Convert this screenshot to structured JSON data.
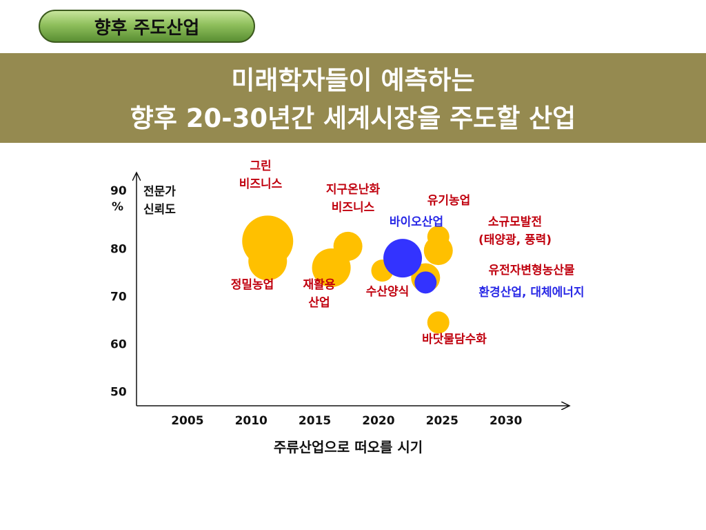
{
  "header": {
    "tag": "향후 주도산업",
    "title_line1": "미래학자들이 예측하는",
    "title_line2": "향후 20-30년간 세계시장을 주도할 산업"
  },
  "colors": {
    "bubble_orange": "#ffc000",
    "bubble_blue": "#3333ff",
    "label_red": "#c0000e",
    "label_blue": "#2929e6"
  },
  "chart_data": {
    "type": "scatter",
    "xlabel": "주류산업으로 떠오를 시기",
    "ylabel": [
      "전문가",
      "신뢰도"
    ],
    "y_unit_label": [
      "90",
      "%"
    ],
    "x_ticks": [
      "2005",
      "2010",
      "2015",
      "2020",
      "2025",
      "2030"
    ],
    "y_ticks": [
      "80",
      "70",
      "60",
      "50"
    ],
    "xlim": [
      2001,
      2035
    ],
    "ylim": [
      47,
      96
    ],
    "points": [
      {
        "label": [
          "그린",
          "비즈니스"
        ],
        "x": 2011.3,
        "y": 81.6,
        "size": "large",
        "color": "orange"
      },
      {
        "label": [
          "정밀농업"
        ],
        "x": 2011.3,
        "y": 77.4,
        "size": "medium",
        "color": "orange"
      },
      {
        "label": [
          "지구온난화",
          "비즈니스"
        ],
        "x": 2017.6,
        "y": 80.5,
        "size": "small",
        "color": "orange"
      },
      {
        "label": [
          "재활용",
          "산업"
        ],
        "x": 2016.3,
        "y": 76.0,
        "size": "medium",
        "color": "orange"
      },
      {
        "label": [
          "수산양식"
        ],
        "x": 2020.3,
        "y": 75.4,
        "size": "xsmall",
        "color": "orange"
      },
      {
        "label": [
          "바이오산업"
        ],
        "x": 2021.9,
        "y": 78.0,
        "size": "medium",
        "color": "blue"
      },
      {
        "label": [
          "유기농업"
        ],
        "x": 2024.7,
        "y": 82.5,
        "size": "xsmall",
        "color": "orange"
      },
      {
        "label": [
          "소규모발전",
          "(태양광, 풍력)"
        ],
        "x": 2024.7,
        "y": 79.6,
        "size": "small",
        "color": "orange"
      },
      {
        "label": [
          "유전자변형농산물"
        ],
        "x": 2023.7,
        "y": 73.9,
        "size": "small",
        "color": "orange"
      },
      {
        "label": [
          "환경산업, 대체에너지"
        ],
        "x": 2023.7,
        "y": 72.9,
        "size": "xsmall",
        "color": "blue"
      },
      {
        "label": [
          "바닷물담수화"
        ],
        "x": 2024.7,
        "y": 64.5,
        "size": "xsmall",
        "color": "orange"
      }
    ]
  }
}
